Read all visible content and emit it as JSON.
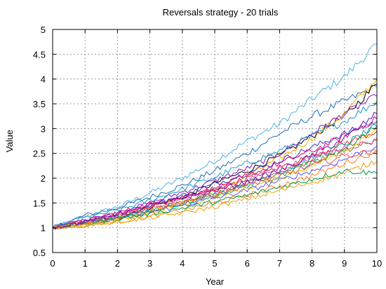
{
  "chart_data": {
    "type": "line",
    "title": "Reversals strategy - 20 trials",
    "xlabel": "Year",
    "ylabel": "Value",
    "xlim": [
      0,
      10
    ],
    "ylim": [
      0.5,
      5
    ],
    "xticks": [
      "0",
      "1",
      "2",
      "3",
      "4",
      "5",
      "6",
      "7",
      "8",
      "9",
      "10"
    ],
    "yticks": [
      "0.5",
      "1",
      "1.5",
      "2",
      "2.5",
      "3",
      "3.5",
      "4",
      "4.5",
      "5"
    ],
    "grid": true,
    "x": [
      0,
      1,
      2,
      3,
      4,
      5,
      6,
      7,
      8,
      9,
      10
    ],
    "series": [
      {
        "color": "#4fb3e8",
        "values": [
          1.0,
          1.22,
          1.42,
          1.7,
          2.0,
          2.35,
          2.75,
          3.1,
          3.6,
          4.05,
          4.7
        ]
      },
      {
        "color": "#1f6fb5",
        "values": [
          1.0,
          1.25,
          1.4,
          1.62,
          1.85,
          2.15,
          2.5,
          2.9,
          3.25,
          3.55,
          3.85
        ]
      },
      {
        "color": "#000000",
        "values": [
          1.0,
          1.12,
          1.22,
          1.42,
          1.62,
          1.9,
          2.15,
          2.45,
          2.85,
          3.25,
          3.9
        ]
      },
      {
        "color": "#f5a800",
        "values": [
          1.0,
          1.05,
          1.15,
          1.3,
          1.5,
          1.75,
          2.05,
          2.4,
          2.8,
          3.3,
          4.0
        ]
      },
      {
        "color": "#8b1ac8",
        "values": [
          1.0,
          1.15,
          1.3,
          1.5,
          1.72,
          1.95,
          2.2,
          2.5,
          2.9,
          3.3,
          3.65
        ]
      },
      {
        "color": "#1aa0c8",
        "values": [
          1.0,
          1.2,
          1.35,
          1.55,
          1.78,
          2.02,
          2.3,
          2.55,
          2.85,
          3.15,
          3.55
        ]
      },
      {
        "color": "#3b3bd6",
        "values": [
          1.0,
          1.1,
          1.25,
          1.45,
          1.65,
          1.88,
          2.1,
          2.35,
          2.62,
          2.9,
          3.15
        ]
      },
      {
        "color": "#d6007a",
        "values": [
          1.0,
          1.14,
          1.3,
          1.48,
          1.62,
          1.8,
          2.05,
          2.3,
          2.55,
          2.85,
          3.2
        ]
      },
      {
        "color": "#e8262f",
        "values": [
          1.0,
          1.12,
          1.22,
          1.42,
          1.6,
          1.78,
          2.0,
          2.22,
          2.45,
          2.7,
          2.95
        ]
      },
      {
        "color": "#2e8b57",
        "values": [
          1.0,
          1.08,
          1.18,
          1.32,
          1.48,
          1.65,
          1.85,
          2.05,
          2.3,
          2.6,
          3.05
        ]
      },
      {
        "color": "#00a0a0",
        "values": [
          1.0,
          1.1,
          1.2,
          1.35,
          1.5,
          1.68,
          1.9,
          2.12,
          2.38,
          2.68,
          3.05
        ]
      },
      {
        "color": "#8a6d3b",
        "values": [
          1.0,
          1.1,
          1.2,
          1.35,
          1.52,
          1.7,
          1.9,
          2.1,
          2.32,
          2.55,
          2.8
        ]
      },
      {
        "color": "#e04ab0",
        "values": [
          1.0,
          1.15,
          1.28,
          1.45,
          1.6,
          1.78,
          1.98,
          2.2,
          2.4,
          2.62,
          2.75
        ]
      },
      {
        "color": "#ff7f1a",
        "values": [
          1.0,
          1.05,
          1.12,
          1.22,
          1.35,
          1.5,
          1.65,
          1.85,
          2.05,
          2.3,
          2.55
        ]
      },
      {
        "color": "#e8c800",
        "values": [
          1.0,
          1.08,
          1.18,
          1.32,
          1.48,
          1.62,
          1.8,
          2.0,
          2.25,
          2.55,
          3.0
        ]
      },
      {
        "color": "#5a5aff",
        "values": [
          1.0,
          1.1,
          1.2,
          1.32,
          1.45,
          1.6,
          1.75,
          1.95,
          2.15,
          2.38,
          2.65
        ]
      },
      {
        "color": "#009944",
        "values": [
          1.0,
          1.08,
          1.18,
          1.28,
          1.4,
          1.52,
          1.65,
          1.82,
          1.98,
          2.15,
          2.1
        ]
      },
      {
        "color": "#ff4d4d",
        "values": [
          1.0,
          1.12,
          1.25,
          1.38,
          1.52,
          1.68,
          1.85,
          2.05,
          2.25,
          2.45,
          2.55
        ]
      },
      {
        "color": "#f0a000",
        "values": [
          1.0,
          1.05,
          1.12,
          1.2,
          1.3,
          1.42,
          1.58,
          1.75,
          1.92,
          2.1,
          2.35
        ]
      },
      {
        "color": "#6a0dad",
        "values": [
          1.0,
          1.12,
          1.28,
          1.45,
          1.6,
          1.75,
          1.92,
          2.15,
          2.45,
          2.8,
          3.3
        ]
      }
    ]
  }
}
